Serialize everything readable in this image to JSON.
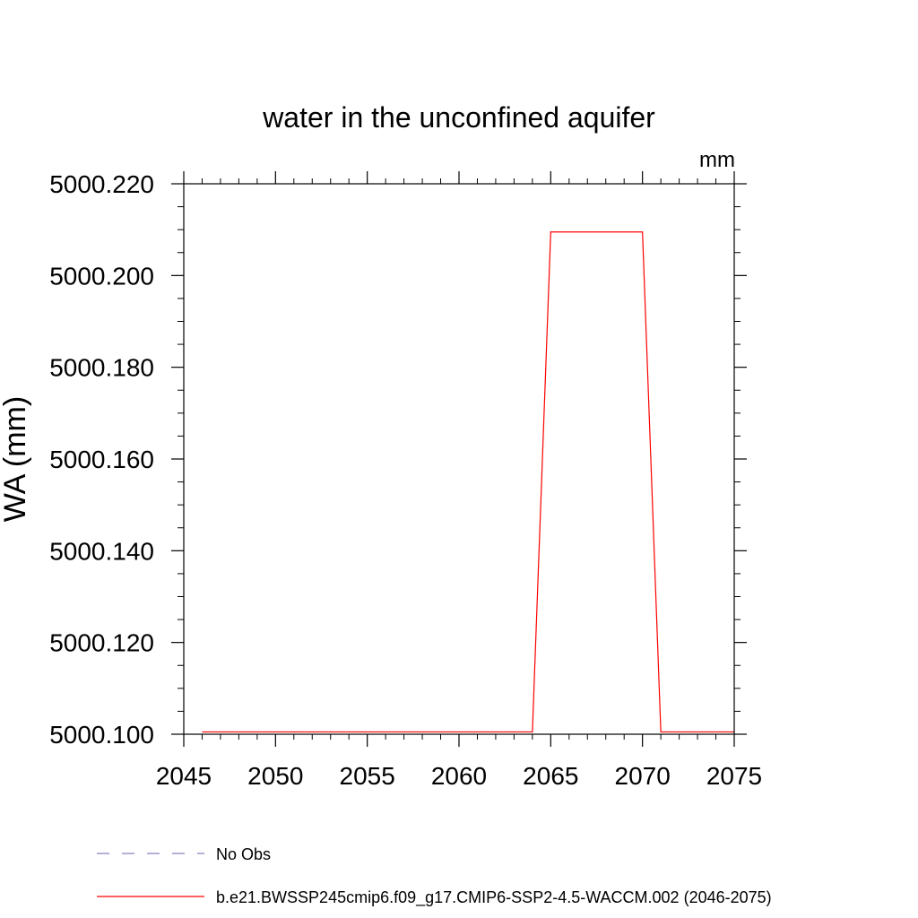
{
  "chart_data": {
    "type": "line",
    "title": "water in the unconfined aquifer",
    "units_label": "mm",
    "ylabel": "WA  (mm)",
    "xlabel": "",
    "xlim": [
      2045,
      2075
    ],
    "ylim": [
      5000.1,
      5000.22
    ],
    "x_ticks": [
      2045,
      2050,
      2055,
      2060,
      2065,
      2070,
      2075
    ],
    "x_tick_labels": [
      "2045",
      "2050",
      "2055",
      "2060",
      "2065",
      "2070",
      "2075"
    ],
    "y_ticks": [
      5000.1,
      5000.12,
      5000.14,
      5000.16,
      5000.18,
      5000.2,
      5000.22
    ],
    "y_tick_labels": [
      "5000.100",
      "5000.120",
      "5000.140",
      "5000.160",
      "5000.180",
      "5000.200",
      "5000.220"
    ],
    "grid": false,
    "series": [
      {
        "name": "b.e21.BWSSP245cmip6.f09_g17.CMIP6-SSP2-4.5-WACCM.002 (2046-2075)",
        "color": "#ff0000",
        "style": "solid",
        "x": [
          2046,
          2047,
          2048,
          2049,
          2050,
          2051,
          2052,
          2053,
          2054,
          2055,
          2056,
          2057,
          2058,
          2059,
          2060,
          2061,
          2062,
          2063,
          2064,
          2065,
          2066,
          2067,
          2068,
          2069,
          2070,
          2071,
          2072,
          2073,
          2074,
          2075
        ],
        "y": [
          5000.1005,
          5000.1005,
          5000.1005,
          5000.1005,
          5000.1005,
          5000.1005,
          5000.1005,
          5000.1005,
          5000.1005,
          5000.1005,
          5000.1005,
          5000.1005,
          5000.1005,
          5000.1005,
          5000.1005,
          5000.1005,
          5000.1005,
          5000.1005,
          5000.1005,
          5000.2095,
          5000.2095,
          5000.2095,
          5000.2095,
          5000.2095,
          5000.2095,
          5000.1005,
          5000.1005,
          5000.1005,
          5000.1005,
          5000.1005
        ]
      }
    ],
    "legend": [
      {
        "label": "No Obs",
        "color": "#8a7fc0",
        "style": "dashed"
      },
      {
        "label": "b.e21.BWSSP245cmip6.f09_g17.CMIP6-SSP2-4.5-WACCM.002 (2046-2075)",
        "color": "#ff0000",
        "style": "solid"
      }
    ],
    "legend_placement": "bottom"
  }
}
